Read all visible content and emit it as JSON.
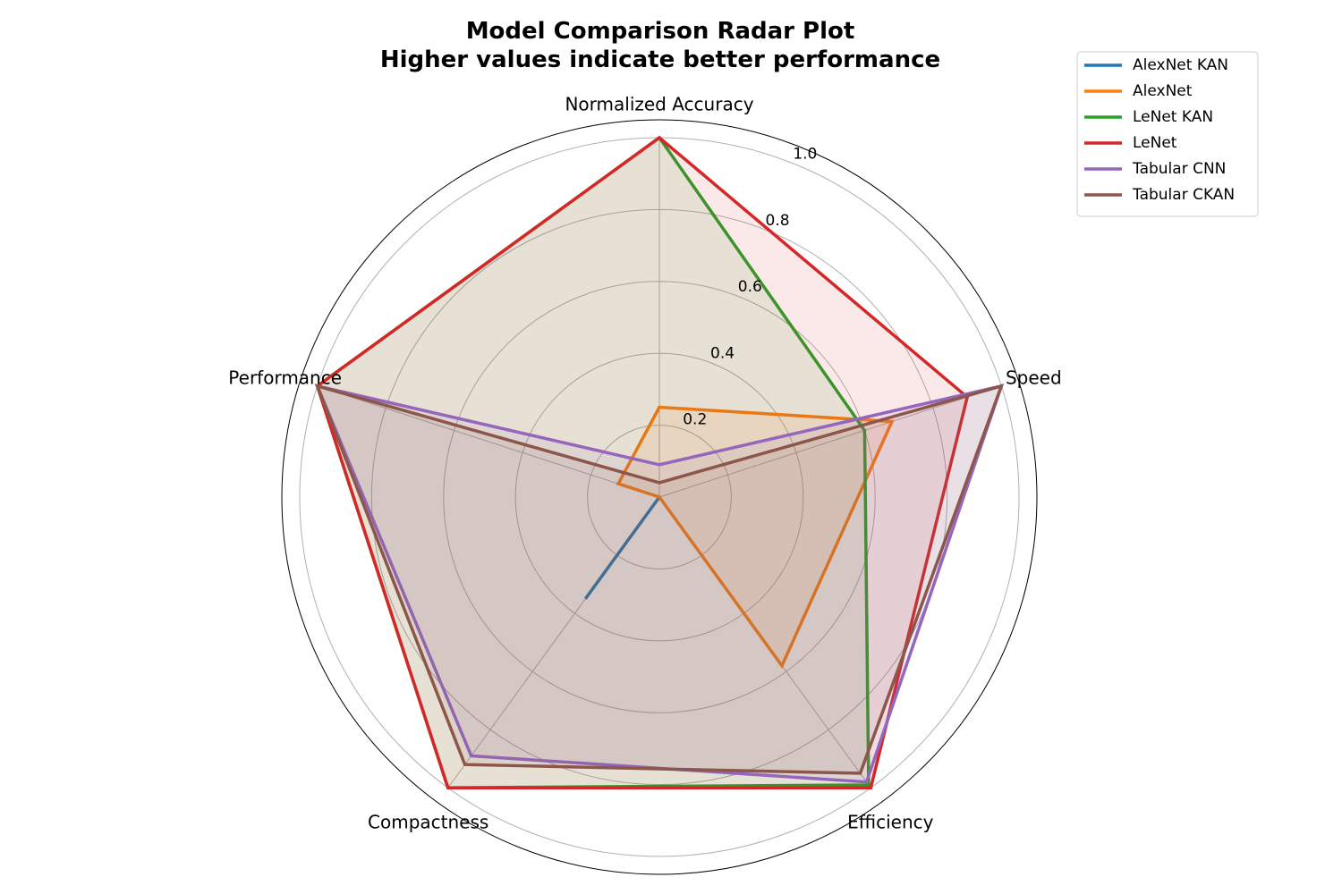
{
  "chart_data": {
    "type": "radar",
    "title_lines": [
      "Model Comparison Radar Plot",
      "Higher values indicate better performance"
    ],
    "axes": [
      "Normalized Accuracy",
      "Speed",
      "Efficiency",
      "Compactness",
      "Performance"
    ],
    "rlim": [
      0,
      1.0
    ],
    "rticks": [
      0.2,
      0.4,
      0.6,
      0.8,
      1.0
    ],
    "rtick_labels": [
      "0.2",
      "0.4",
      "0.6",
      "0.8",
      "1.0"
    ],
    "grid": true,
    "legend_position": "upper-right-outside",
    "series": [
      {
        "name": "AlexNet KAN",
        "color": "#1f77b4",
        "values": [
          0.0,
          0.0,
          0.0,
          0.35,
          0.0
        ],
        "fill": false
      },
      {
        "name": "AlexNet",
        "color": "#ff7f0e",
        "values": [
          0.25,
          0.68,
          0.58,
          0.0,
          0.12
        ],
        "fill": true
      },
      {
        "name": "LeNet KAN",
        "color": "#2ca02c",
        "values": [
          1.0,
          0.6,
          0.99,
          1.0,
          1.0
        ],
        "fill": true
      },
      {
        "name": "LeNet",
        "color": "#d62728",
        "values": [
          1.0,
          0.9,
          1.0,
          1.0,
          1.0
        ],
        "fill": true
      },
      {
        "name": "Tabular CNN",
        "color": "#9467bd",
        "values": [
          0.09,
          1.0,
          0.98,
          0.89,
          1.0
        ],
        "fill": true
      },
      {
        "name": "Tabular CKAN",
        "color": "#8c564b",
        "values": [
          0.04,
          1.0,
          0.95,
          0.92,
          1.0
        ],
        "fill": true
      }
    ]
  }
}
